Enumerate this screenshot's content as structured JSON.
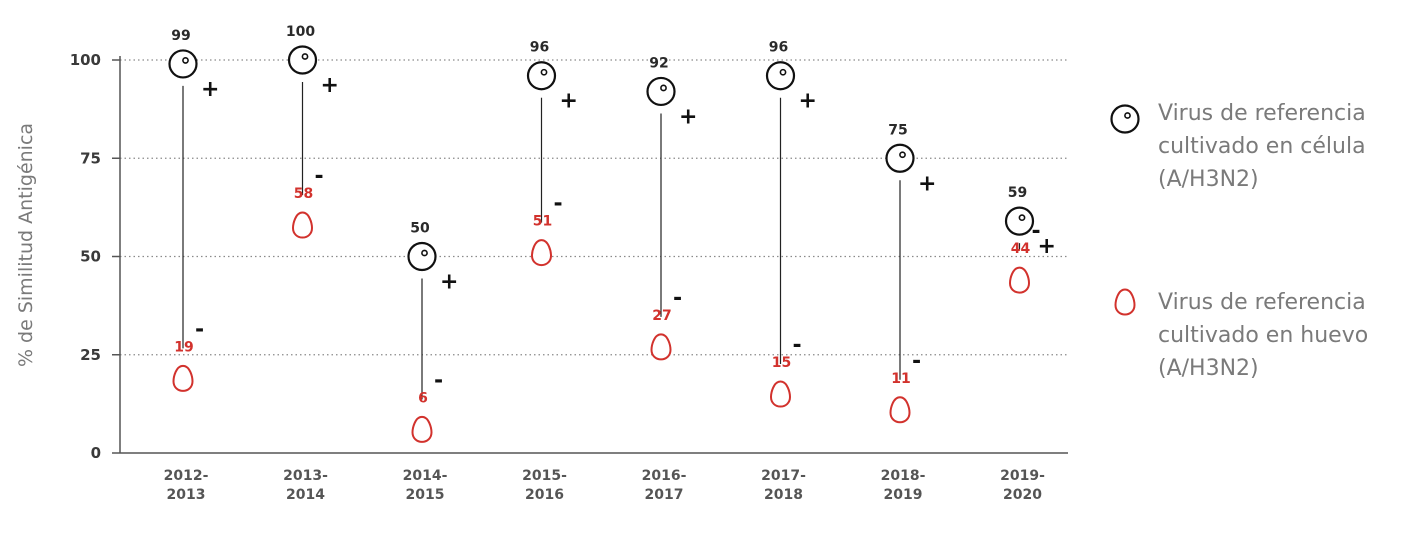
{
  "chart_data": {
    "type": "scatter",
    "title": "",
    "xlabel": "",
    "ylabel": "% de Similitud Antigénica",
    "ylim": [
      0,
      100
    ],
    "yticks": [
      0,
      25,
      50,
      75,
      100
    ],
    "grid": "horizontal-dotted",
    "legend_position": "right",
    "categories": [
      [
        "2012-",
        "2013"
      ],
      [
        "2013-",
        "2014"
      ],
      [
        "2014-",
        "2015"
      ],
      [
        "2015-",
        "2016"
      ],
      [
        "2016-",
        "2017"
      ],
      [
        "2017-",
        "2018"
      ],
      [
        "2018-",
        "2019"
      ],
      [
        "2019-",
        "2020"
      ]
    ],
    "series": [
      {
        "name": [
          "Virus de referencia",
          "cultivado en célula",
          "(A/H3N2)"
        ],
        "marker": "cell",
        "color": "#111111",
        "values": [
          99,
          100,
          50,
          96,
          92,
          96,
          75,
          59
        ]
      },
      {
        "name": [
          "Virus de referencia",
          "cultivado en huevo",
          "(A/H3N2)"
        ],
        "marker": "egg",
        "color": "#d2322d",
        "values": [
          19,
          58,
          6,
          51,
          27,
          15,
          11,
          44
        ]
      }
    ],
    "plus_sign": "+",
    "minus_sign": "-"
  }
}
